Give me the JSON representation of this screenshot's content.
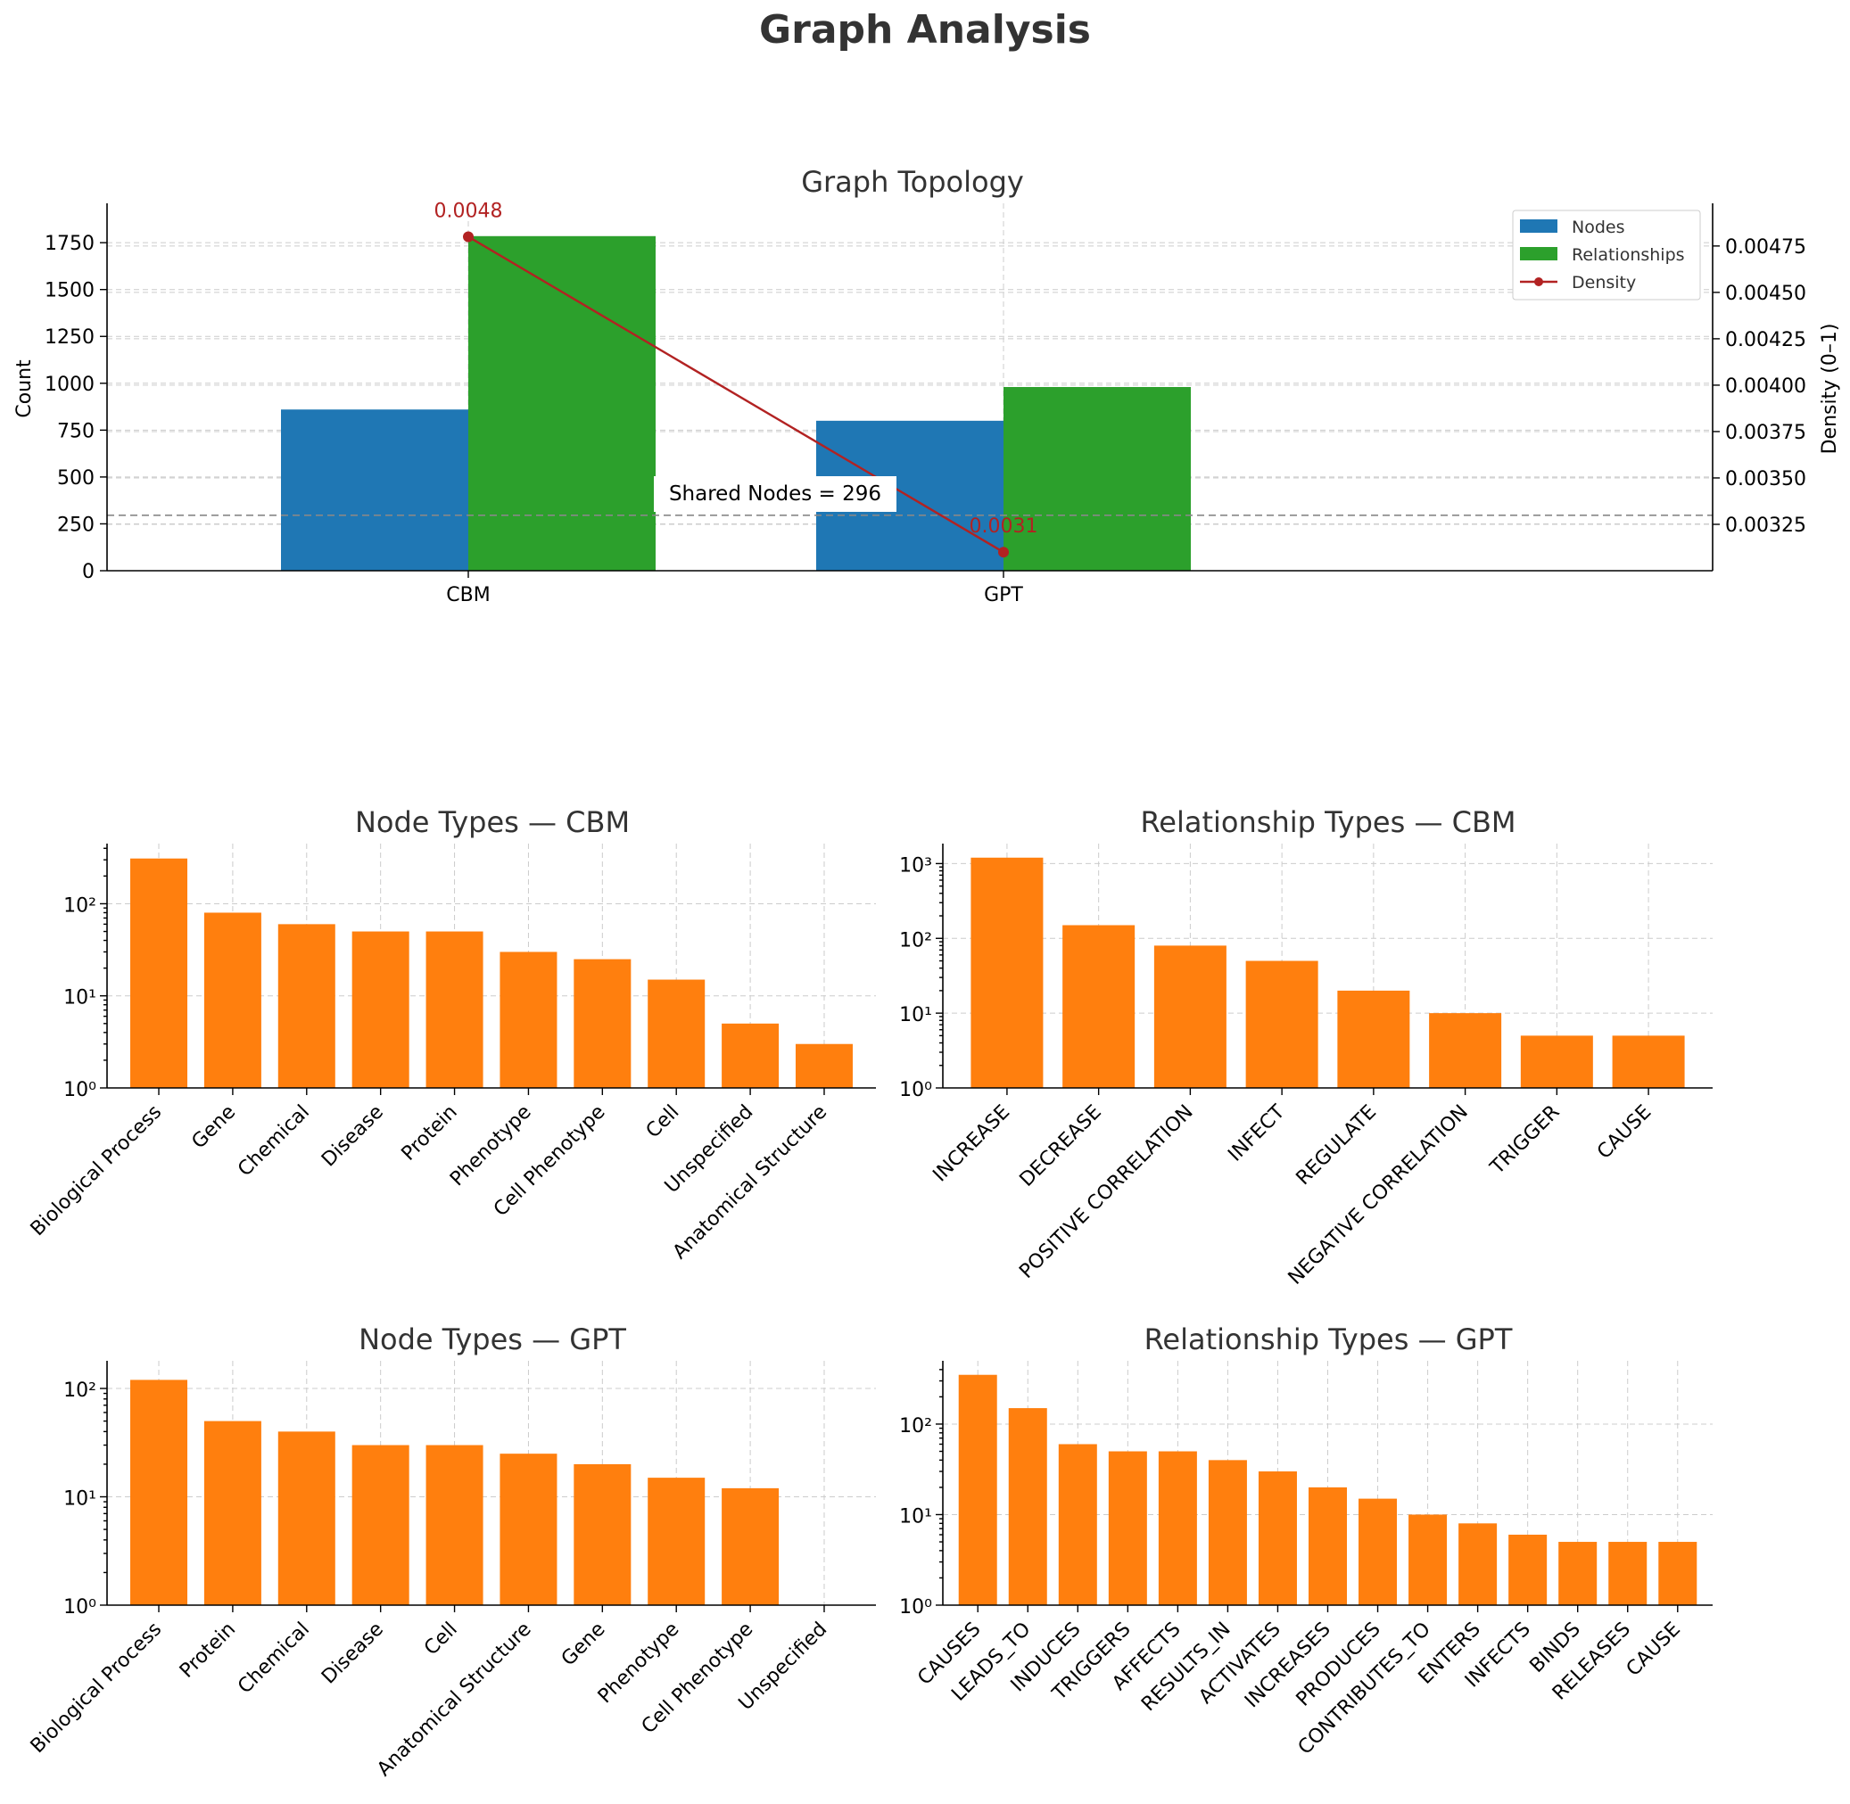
{
  "figure_title": "Graph Analysis",
  "colors": {
    "nodes": "#1f77b4",
    "relationships": "#2ca02c",
    "density": "#b22222",
    "type_bars": "#ff7f0e",
    "shared_line": "#888888"
  },
  "chart_data": [
    {
      "id": "topology",
      "type": "bar",
      "title": "Graph Topology",
      "ylabel": "Count",
      "y2label": "Density (0–1)",
      "categories": [
        "CBM",
        "GPT"
      ],
      "series": [
        {
          "name": "Nodes",
          "values": [
            860,
            800
          ]
        },
        {
          "name": "Relationships",
          "values": [
            1785,
            980
          ]
        }
      ],
      "line_series": {
        "name": "Density",
        "values": [
          0.0048,
          0.0031
        ],
        "labels": [
          "0.0048",
          "0.0031"
        ]
      },
      "ylim": [
        0,
        1960
      ],
      "yticks": [
        0,
        250,
        500,
        750,
        1000,
        1250,
        1500,
        1750
      ],
      "y2lim": [
        0.003,
        0.00498
      ],
      "y2ticks": [
        0.00325,
        0.0035,
        0.00375,
        0.004,
        0.00425,
        0.0045,
        0.00475
      ],
      "y2tick_labels": [
        "0.00325",
        "0.00350",
        "0.00375",
        "0.00400",
        "0.00425",
        "0.00450",
        "0.00475"
      ],
      "reference_line": {
        "value": 296,
        "label": "Shared Nodes = 296"
      },
      "legend": "top-right",
      "grid": true
    },
    {
      "id": "node_cbm",
      "type": "bar",
      "title": "Node Types — CBM",
      "log_y": true,
      "categories": [
        "Biological Process",
        "Gene",
        "Chemical",
        "Disease",
        "Protein",
        "Phenotype",
        "Cell Phenotype",
        "Cell",
        "Unspecified",
        "Anatomical Structure"
      ],
      "values": [
        310,
        80,
        60,
        50,
        50,
        30,
        25,
        15,
        5,
        3
      ],
      "ylim": [
        1,
        450
      ],
      "yticks": [
        1,
        10,
        100
      ],
      "grid": true
    },
    {
      "id": "rel_cbm",
      "type": "bar",
      "title": "Relationship Types — CBM",
      "log_y": true,
      "categories": [
        "INCREASE",
        "DECREASE",
        "POSITIVE CORRELATION",
        "INFECT",
        "REGULATE",
        "NEGATIVE CORRELATION",
        "TRIGGER",
        "CAUSE"
      ],
      "values": [
        1200,
        150,
        80,
        50,
        20,
        10,
        5,
        5
      ],
      "ylim": [
        1,
        1850
      ],
      "yticks": [
        1,
        10,
        100,
        1000
      ],
      "grid": true
    },
    {
      "id": "node_gpt",
      "type": "bar",
      "title": "Node Types — GPT",
      "log_y": true,
      "categories": [
        "Biological Process",
        "Protein",
        "Chemical",
        "Disease",
        "Cell",
        "Anatomical Structure",
        "Gene",
        "Phenotype",
        "Cell Phenotype",
        "Unspecified"
      ],
      "values": [
        120,
        50,
        40,
        30,
        30,
        25,
        20,
        15,
        12,
        1
      ],
      "ylim": [
        1,
        180
      ],
      "yticks": [
        1,
        10,
        100
      ],
      "grid": true
    },
    {
      "id": "rel_gpt",
      "type": "bar",
      "title": "Relationship Types — GPT",
      "log_y": true,
      "categories": [
        "CAUSES",
        "LEADS_TO",
        "INDUCES",
        "TRIGGERS",
        "AFFECTS",
        "RESULTS_IN",
        "ACTIVATES",
        "INCREASES",
        "PRODUCES",
        "CONTRIBUTES_TO",
        "ENTERS",
        "INFECTS",
        "BINDS",
        "RELEASES",
        "CAUSE"
      ],
      "values": [
        350,
        150,
        60,
        50,
        50,
        40,
        30,
        20,
        15,
        10,
        8,
        6,
        5,
        5,
        5
      ],
      "ylim": [
        1,
        500
      ],
      "yticks": [
        1,
        10,
        100
      ],
      "grid": true
    }
  ]
}
